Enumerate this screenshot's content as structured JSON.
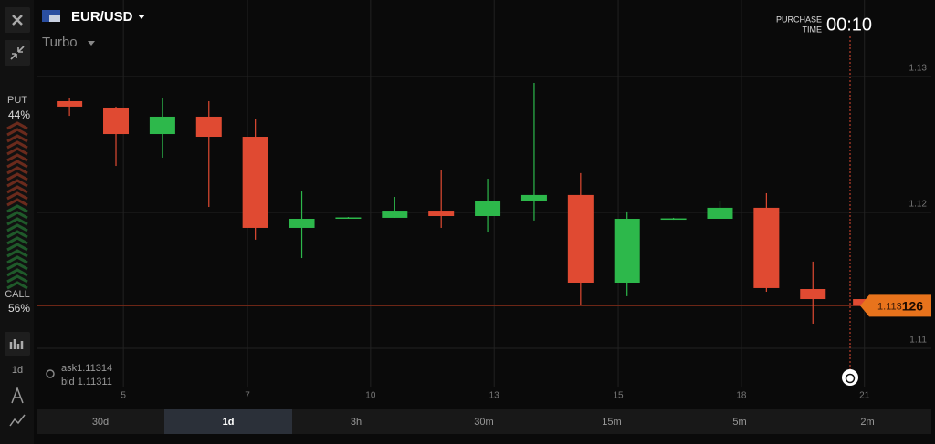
{
  "header": {
    "pair": "EUR/USD",
    "mode": "Turbo",
    "purchase_label": [
      "PURCHASE",
      "TIME"
    ],
    "timer": "00:10"
  },
  "sidebar": {
    "put_label": "PUT",
    "put_percent": "44%",
    "call_label": "CALL",
    "call_percent": "56%",
    "period": "1d"
  },
  "quotes": [
    {
      "label": "ask",
      "value": "1.11314"
    },
    {
      "label": "bid",
      "value": "1.11311"
    }
  ],
  "price_label": [
    "1.113",
    "126"
  ],
  "timeframes": {
    "items": [
      "30d",
      "1d",
      "3h",
      "30m",
      "15m",
      "5m",
      "2m"
    ],
    "selected": 1
  },
  "chart_data": {
    "type": "candlestick",
    "x": [
      0,
      1,
      2,
      3,
      4,
      5,
      6,
      7,
      8,
      9,
      10,
      11,
      12,
      13,
      14,
      15,
      16,
      17
    ],
    "open": [
      1.12819,
      1.12772,
      1.12577,
      1.12705,
      1.12557,
      1.11886,
      1.11957,
      1.1196,
      1.12013,
      1.11973,
      1.12087,
      1.12128,
      1.11483,
      1.1195,
      1.11953,
      1.12034,
      1.11436,
      1.11362
    ],
    "high": [
      1.12839,
      1.12779,
      1.12839,
      1.12819,
      1.12691,
      1.12154,
      1.11966,
      1.12114,
      1.12315,
      1.12248,
      1.12953,
      1.12289,
      1.12007,
      1.1196,
      1.12087,
      1.12141,
      1.11638,
      1.11362
    ],
    "low": [
      1.12711,
      1.12342,
      1.12403,
      1.1204,
      1.11799,
      1.11664,
      1.11953,
      1.1196,
      1.11886,
      1.11852,
      1.1194,
      1.11322,
      1.11383,
      1.11946,
      1.11953,
      1.11416,
      1.11181,
      1.11313
    ],
    "close": [
      1.12779,
      1.12577,
      1.12705,
      1.12557,
      1.11886,
      1.11953,
      1.11963,
      1.12013,
      1.11973,
      1.12087,
      1.12128,
      1.11483,
      1.11953,
      1.11956,
      1.12034,
      1.11443,
      1.11362,
      1.11313
    ],
    "up_color": "#2db84b",
    "down_color": "#e04a32",
    "current_price": 1.113126,
    "current_color": "#e8731c",
    "xlim": [
      -0.71,
      18.55
    ],
    "ylim": [
      1.10711,
      1.13564
    ],
    "xticks": [
      {
        "value": 1.16,
        "label": "5"
      },
      {
        "value": 3.83,
        "label": "7"
      },
      {
        "value": 6.48,
        "label": "10"
      },
      {
        "value": 9.14,
        "label": "13"
      },
      {
        "value": 11.81,
        "label": "15"
      },
      {
        "value": 14.46,
        "label": "18"
      },
      {
        "value": 17.11,
        "label": "21"
      }
    ],
    "yticks": [
      1.11,
      1.12,
      1.13
    ],
    "grid": true
  }
}
